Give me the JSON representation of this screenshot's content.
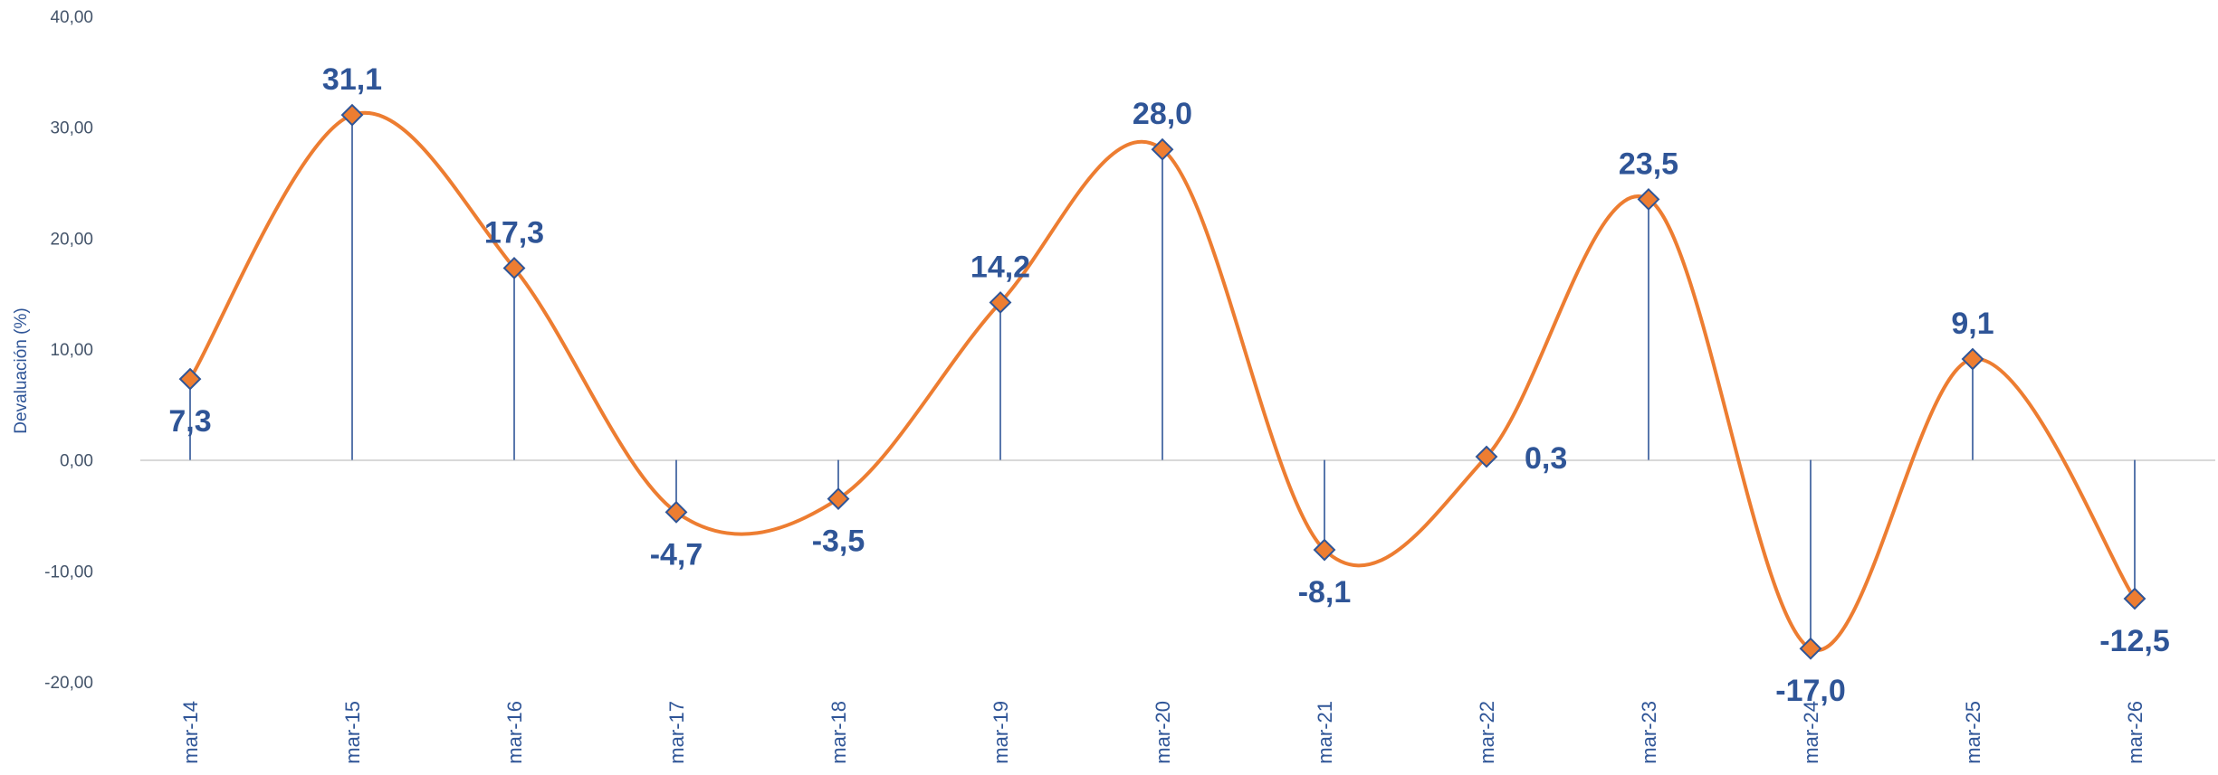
{
  "chart_data": {
    "type": "line",
    "ylabel": "Devaluación (%)",
    "xlabel": "",
    "ylim": [
      -20,
      40
    ],
    "yticks": [
      "40,00",
      "30,00",
      "20,00",
      "10,00",
      "0,00",
      "-10,00",
      "-20,00"
    ],
    "categories": [
      "mar-14",
      "mar-15",
      "mar-16",
      "mar-17",
      "mar-18",
      "mar-19",
      "mar-20",
      "mar-21",
      "mar-22",
      "mar-23",
      "mar-24",
      "mar-25",
      "mar-26"
    ],
    "values": [
      7.3,
      31.1,
      17.3,
      -4.7,
      -3.5,
      14.2,
      28.0,
      -8.1,
      0.3,
      23.5,
      -17.0,
      9.1,
      -12.5
    ],
    "data_labels": [
      "7,3",
      "31,1",
      "17,3",
      "-4,7",
      "-3,5",
      "14,2",
      "28,0",
      "-8,1",
      "0,3",
      "23,5",
      "-17,0",
      "9,1",
      "-12,5"
    ],
    "smooth": true,
    "drop_lines": true,
    "grid": false,
    "colors": {
      "line": "#ED7D31",
      "marker": "#ED7D31",
      "marker_border": "#2F5597",
      "drop_line": "#2F5597",
      "axis": "#D9D9D9",
      "text": "#2F5597"
    }
  }
}
